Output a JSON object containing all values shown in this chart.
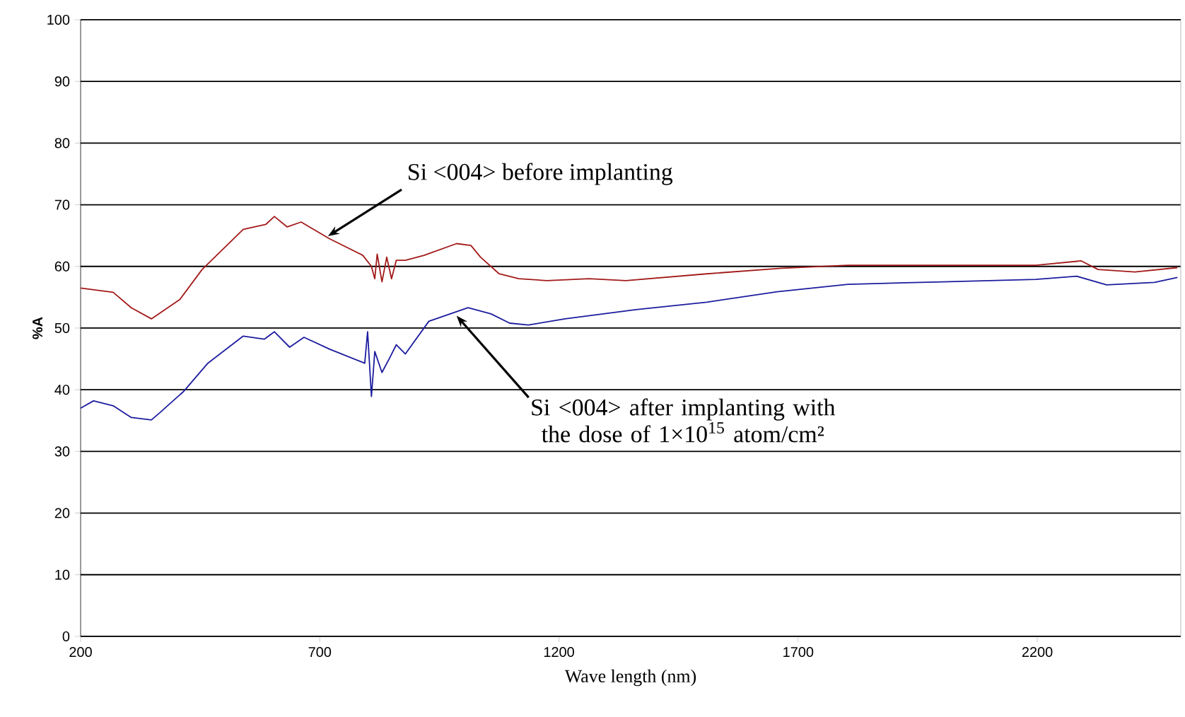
{
  "chart_data": {
    "type": "line",
    "xlabel": "Wave length (nm)",
    "ylabel": "%A",
    "xlim": [
      200,
      2500
    ],
    "ylim": [
      0,
      100
    ],
    "xticks": [
      200,
      700,
      1200,
      1700,
      2200
    ],
    "yticks": [
      0,
      10,
      20,
      30,
      40,
      50,
      60,
      70,
      80,
      90,
      100
    ],
    "grid": "y",
    "marker": "none",
    "line_style": "solid",
    "series": [
      {
        "color": "#a31a1a",
        "x": [
          200,
          268,
          306,
          348,
          407,
          454,
          540,
          587,
          605,
          632,
          661,
          720,
          790,
          808,
          815,
          820,
          830,
          840,
          850,
          860,
          879,
          918,
          986,
          1016,
          1036,
          1075,
          1116,
          1175,
          1263,
          1340,
          1509,
          1665,
          1804,
          2002,
          2197,
          2292,
          2327,
          2404,
          2493
        ],
        "values": [
          56.5,
          55.8,
          53.3,
          51.5,
          54.6,
          59.5,
          66,
          66.8,
          68.1,
          66.4,
          67.2,
          64.5,
          61.8,
          60,
          58,
          62,
          57.5,
          61.5,
          58,
          61,
          61,
          61.8,
          63.7,
          63.4,
          61.5,
          58.8,
          58,
          57.7,
          58,
          57.7,
          58.8,
          59.7,
          60.2,
          60.2,
          60.2,
          60.9,
          59.5,
          59.1,
          59.8
        ]
      },
      {
        "color": "#1c1c9e",
        "x": [
          200,
          227,
          268,
          306,
          348,
          366,
          415,
          466,
          540,
          584,
          605,
          637,
          667,
          720,
          794,
          800,
          808,
          815,
          830,
          845,
          860,
          879,
          928,
          1010,
          1058,
          1097,
          1136,
          1213,
          1361,
          1509,
          1656,
          1804,
          2002,
          2197,
          2283,
          2345,
          2445,
          2493
        ],
        "values": [
          37,
          38.2,
          37.4,
          35.5,
          35.1,
          36.3,
          39.7,
          44.3,
          48.7,
          48.2,
          49.4,
          46.9,
          48.5,
          46.6,
          44.3,
          49.4,
          38.9,
          46.2,
          42.8,
          45,
          47.3,
          45.8,
          51.1,
          53.3,
          52.3,
          50.8,
          50.5,
          51.5,
          53,
          54.2,
          55.9,
          57.1,
          57.5,
          57.9,
          58.4,
          57,
          57.4,
          58.2
        ]
      }
    ],
    "annotations": [
      {
        "text": "Si <004>  before implanting",
        "x": 717,
        "y": 64.9
      },
      {
        "text": "Si <004>  after implanting with the dose of 1×10$^{15}$ atom/cm²",
        "x": 986,
        "y": 52
      }
    ]
  }
}
